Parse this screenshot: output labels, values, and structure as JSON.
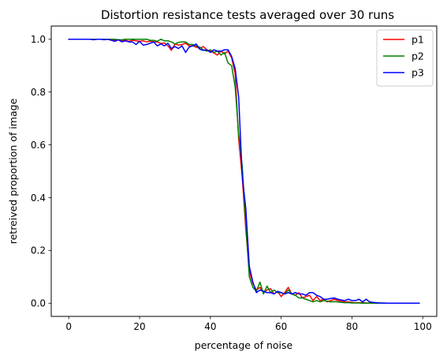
{
  "chart_data": {
    "type": "line",
    "title": "Distortion resistance tests averaged over 30 runs",
    "xlabel": "percentage of noise",
    "ylabel": "retreived proportion of image",
    "xlim": [
      -4.95,
      103.95
    ],
    "ylim": [
      -0.05,
      1.05
    ],
    "xticks": [
      0,
      20,
      40,
      60,
      80,
      100
    ],
    "yticks": [
      0.0,
      0.2,
      0.4,
      0.6,
      0.8,
      1.0
    ],
    "xtick_labels": [
      "0",
      "20",
      "40",
      "60",
      "80",
      "100"
    ],
    "ytick_labels": [
      "0.0",
      "0.2",
      "0.4",
      "0.6",
      "0.8",
      "1.0"
    ],
    "grid": false,
    "legend_position": "top-right",
    "x": [
      0,
      1,
      2,
      3,
      4,
      5,
      6,
      7,
      8,
      9,
      10,
      11,
      12,
      13,
      14,
      15,
      16,
      17,
      18,
      19,
      20,
      21,
      22,
      23,
      24,
      25,
      26,
      27,
      28,
      29,
      30,
      31,
      32,
      33,
      34,
      35,
      36,
      37,
      38,
      39,
      40,
      41,
      42,
      43,
      44,
      45,
      46,
      47,
      48,
      49,
      50,
      51,
      52,
      53,
      54,
      55,
      56,
      57,
      58,
      59,
      60,
      61,
      62,
      63,
      64,
      65,
      66,
      67,
      68,
      69,
      70,
      71,
      72,
      73,
      74,
      75,
      76,
      77,
      78,
      79,
      80,
      81,
      82,
      83,
      84,
      85,
      86,
      87,
      88,
      89,
      90,
      91,
      92,
      93,
      94,
      95,
      96,
      97,
      98,
      99
    ],
    "series": [
      {
        "name": "p1",
        "color": "#ff0000",
        "values": [
          1,
          1,
          1,
          1,
          1,
          1,
          1,
          1,
          1,
          1,
          1,
          1,
          0.998,
          0.996,
          0.998,
          0.994,
          0.996,
          0.992,
          0.996,
          0.994,
          0.992,
          0.994,
          0.99,
          0.993,
          0.99,
          0.99,
          0.984,
          0.986,
          0.975,
          0.958,
          0.982,
          0.978,
          0.98,
          0.985,
          0.975,
          0.975,
          0.97,
          0.966,
          0.972,
          0.96,
          0.955,
          0.948,
          0.94,
          0.955,
          0.945,
          0.955,
          0.93,
          0.87,
          0.62,
          0.48,
          0.28,
          0.12,
          0.075,
          0.05,
          0.06,
          0.04,
          0.05,
          0.055,
          0.035,
          0.045,
          0.025,
          0.04,
          0.06,
          0.035,
          0.03,
          0.04,
          0.02,
          0.025,
          0.03,
          0.01,
          0.025,
          0.01,
          0.015,
          0.005,
          0.01,
          0.015,
          0.01,
          0.008,
          0.005,
          0.005,
          0.003,
          0.002,
          0.002,
          0.002,
          0.001,
          0.001,
          0,
          0,
          0,
          0,
          0,
          0,
          0,
          0,
          0,
          0,
          0,
          0,
          0,
          0
        ]
      },
      {
        "name": "p2",
        "color": "#008000",
        "values": [
          1,
          1,
          1,
          1,
          1,
          1,
          1,
          1,
          1,
          1,
          1,
          1,
          1,
          1,
          0.998,
          0.998,
          1,
          1,
          1,
          1,
          1,
          1,
          1,
          0.996,
          0.996,
          0.992,
          1,
          0.994,
          0.994,
          0.99,
          0.982,
          0.988,
          0.99,
          0.99,
          0.98,
          0.98,
          0.975,
          0.97,
          0.96,
          0.955,
          0.96,
          0.95,
          0.955,
          0.94,
          0.95,
          0.91,
          0.9,
          0.82,
          0.64,
          0.52,
          0.3,
          0.1,
          0.06,
          0.045,
          0.08,
          0.035,
          0.065,
          0.04,
          0.05,
          0.04,
          0.04,
          0.035,
          0.05,
          0.035,
          0.03,
          0.02,
          0.02,
          0.015,
          0.01,
          0.005,
          0.01,
          0.005,
          0.01,
          0.008,
          0.005,
          0.006,
          0.005,
          0.003,
          0.002,
          0.002,
          0.001,
          0.001,
          0.001,
          0,
          0,
          0,
          0,
          0,
          0,
          0,
          0,
          0,
          0,
          0,
          0,
          0,
          0,
          0,
          0,
          0
        ]
      },
      {
        "name": "p3",
        "color": "#0000ff",
        "values": [
          1,
          1,
          1,
          1,
          1,
          1,
          1,
          0.998,
          1,
          1,
          0.998,
          1,
          0.996,
          0.992,
          0.998,
          0.99,
          0.994,
          0.99,
          0.99,
          0.98,
          0.992,
          0.978,
          0.98,
          0.985,
          0.99,
          0.975,
          0.982,
          0.975,
          0.985,
          0.965,
          0.972,
          0.965,
          0.975,
          0.95,
          0.97,
          0.975,
          0.982,
          0.962,
          0.958,
          0.96,
          0.95,
          0.96,
          0.955,
          0.955,
          0.96,
          0.96,
          0.935,
          0.89,
          0.78,
          0.48,
          0.36,
          0.14,
          0.08,
          0.04,
          0.05,
          0.045,
          0.04,
          0.04,
          0.035,
          0.045,
          0.04,
          0.035,
          0.04,
          0.035,
          0.04,
          0.035,
          0.035,
          0.03,
          0.04,
          0.04,
          0.03,
          0.025,
          0.015,
          0.015,
          0.018,
          0.02,
          0.015,
          0.012,
          0.01,
          0.015,
          0.01,
          0.01,
          0.015,
          0.005,
          0.015,
          0.005,
          0.003,
          0.002,
          0.001,
          0.001,
          0,
          0,
          0,
          0,
          0,
          0,
          0,
          0,
          0,
          0
        ]
      }
    ]
  }
}
